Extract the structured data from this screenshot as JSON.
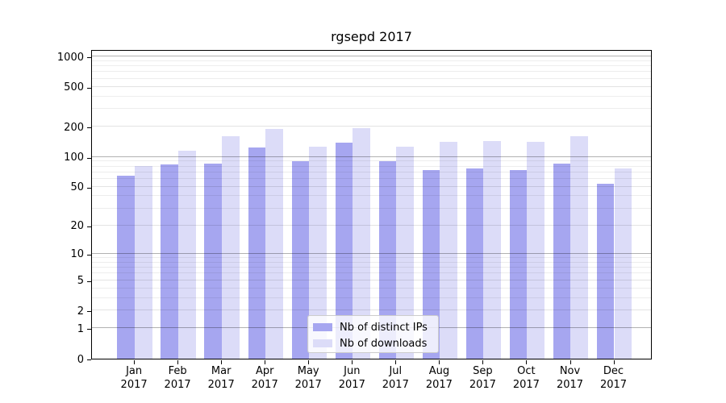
{
  "chart_data": {
    "type": "bar",
    "title": "rgsepd 2017",
    "x_categories": [
      {
        "label": "Jan",
        "sublabel": "2017"
      },
      {
        "label": "Feb",
        "sublabel": "2017"
      },
      {
        "label": "Mar",
        "sublabel": "2017"
      },
      {
        "label": "Apr",
        "sublabel": "2017"
      },
      {
        "label": "May",
        "sublabel": "2017"
      },
      {
        "label": "Jun",
        "sublabel": "2017"
      },
      {
        "label": "Jul",
        "sublabel": "2017"
      },
      {
        "label": "Aug",
        "sublabel": "2017"
      },
      {
        "label": "Sep",
        "sublabel": "2017"
      },
      {
        "label": "Oct",
        "sublabel": "2017"
      },
      {
        "label": "Nov",
        "sublabel": "2017"
      },
      {
        "label": "Dec",
        "sublabel": "2017"
      }
    ],
    "series": [
      {
        "name": "Nb of distinct IPs",
        "color": "#a6a6f0",
        "values": [
          65,
          84,
          86,
          125,
          91,
          138,
          91,
          74,
          76,
          73,
          86,
          54
        ]
      },
      {
        "name": "Nb of downloads",
        "color": "#dcdcf8",
        "values": [
          81,
          115,
          160,
          189,
          127,
          193,
          127,
          142,
          144,
          141,
          160,
          77
        ]
      }
    ],
    "y_axis": {
      "scale": "log10(value+1)",
      "ticks": [
        0,
        1,
        2,
        5,
        10,
        20,
        50,
        100,
        200,
        500,
        1000
      ],
      "minor_ticks": [
        3,
        4,
        6,
        7,
        8,
        9,
        30,
        40,
        60,
        70,
        80,
        90,
        300,
        400,
        600,
        700,
        800,
        900
      ],
      "max": 1180
    },
    "legend_position": "bottom-center",
    "grid": "on"
  },
  "colors": {
    "grid_major": "rgba(0,0,0,0.30)",
    "grid_labeled": "rgba(0,0,0,0.11)",
    "grid_minor": "rgba(0,0,0,0.07)"
  }
}
